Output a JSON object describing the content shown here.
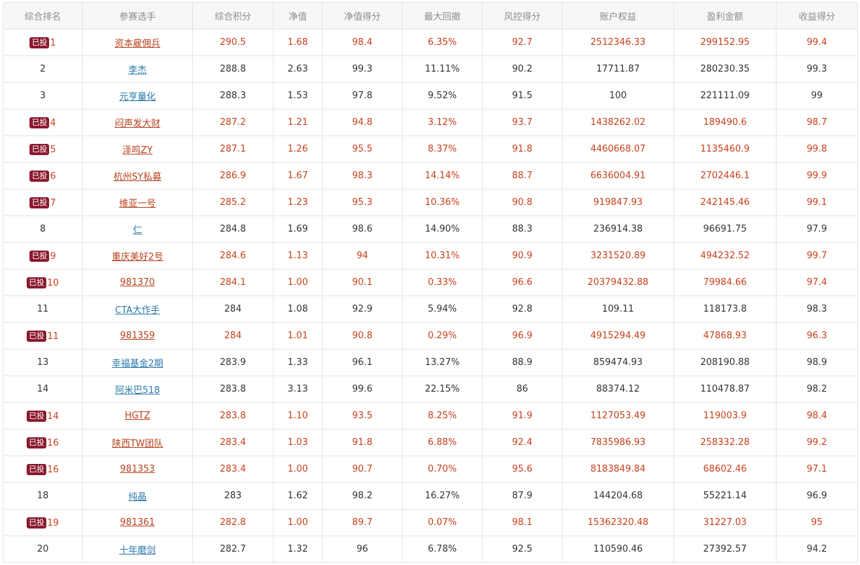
{
  "table": {
    "headers": [
      "综合排名",
      "参赛选手",
      "综合积分",
      "净值",
      "净值得分",
      "最大回撤",
      "风控得分",
      "账户权益",
      "盈利金额",
      "收益得分"
    ],
    "badge_label": "已投",
    "colors": {
      "invested_text": "#c8401e",
      "invested_link": "#b7411d",
      "regular_text": "#333333",
      "regular_link": "#2b7aaa",
      "badge_bg": "#8a1a2e",
      "header_text": "#8c8c8c"
    },
    "rows": [
      {
        "invested": true,
        "badge": "已投",
        "rank": "1",
        "name": "资本雇佣兵",
        "score": "290.5",
        "nav": "1.68",
        "nav_score": "98.4",
        "max_drawdown": "6.35%",
        "risk_score": "92.7",
        "equity": "2512346.33",
        "profit": "299152.95",
        "return_score": "99.4"
      },
      {
        "invested": false,
        "badge": "",
        "rank": "2",
        "name": "李杰",
        "score": "288.8",
        "nav": "2.63",
        "nav_score": "99.3",
        "max_drawdown": "11.11%",
        "risk_score": "90.2",
        "equity": "17711.87",
        "profit": "280230.35",
        "return_score": "99.3"
      },
      {
        "invested": false,
        "badge": "",
        "rank": "3",
        "name": "元亨量化",
        "score": "288.3",
        "nav": "1.53",
        "nav_score": "97.8",
        "max_drawdown": "9.52%",
        "risk_score": "91.5",
        "equity": "100",
        "profit": "221111.09",
        "return_score": "99"
      },
      {
        "invested": true,
        "badge": "已投",
        "rank": "4",
        "name": "闷声发大财",
        "score": "287.2",
        "nav": "1.21",
        "nav_score": "94.8",
        "max_drawdown": "3.12%",
        "risk_score": "93.7",
        "equity": "1438262.02",
        "profit": "189490.6",
        "return_score": "98.7"
      },
      {
        "invested": true,
        "badge": "已投",
        "rank": "5",
        "name": "泽鸣ZY",
        "score": "287.1",
        "nav": "1.26",
        "nav_score": "95.5",
        "max_drawdown": "8.37%",
        "risk_score": "91.8",
        "equity": "4460668.07",
        "profit": "1135460.9",
        "return_score": "99.8"
      },
      {
        "invested": true,
        "badge": "已投",
        "rank": "6",
        "name": "杭州SY私募",
        "score": "286.9",
        "nav": "1.67",
        "nav_score": "98.3",
        "max_drawdown": "14.14%",
        "risk_score": "88.7",
        "equity": "6636004.91",
        "profit": "2702446.1",
        "return_score": "99.9"
      },
      {
        "invested": true,
        "badge": "已投",
        "rank": "7",
        "name": "维亚一号",
        "score": "285.2",
        "nav": "1.23",
        "nav_score": "95.3",
        "max_drawdown": "10.36%",
        "risk_score": "90.8",
        "equity": "919847.93",
        "profit": "242145.46",
        "return_score": "99.1"
      },
      {
        "invested": false,
        "badge": "",
        "rank": "8",
        "name": "仁",
        "score": "284.8",
        "nav": "1.69",
        "nav_score": "98.6",
        "max_drawdown": "14.90%",
        "risk_score": "88.3",
        "equity": "236914.38",
        "profit": "96691.75",
        "return_score": "97.9"
      },
      {
        "invested": true,
        "badge": "已投",
        "rank": "9",
        "name": "重庆美好2号",
        "score": "284.6",
        "nav": "1.13",
        "nav_score": "94",
        "max_drawdown": "10.31%",
        "risk_score": "90.9",
        "equity": "3231520.89",
        "profit": "494232.52",
        "return_score": "99.7"
      },
      {
        "invested": true,
        "badge": "已投",
        "rank": "10",
        "name": "981370",
        "score": "284.1",
        "nav": "1.00",
        "nav_score": "90.1",
        "max_drawdown": "0.33%",
        "risk_score": "96.6",
        "equity": "20379432.88",
        "profit": "79984.66",
        "return_score": "97.4"
      },
      {
        "invested": false,
        "badge": "",
        "rank": "11",
        "name": "CTA大作手",
        "score": "284",
        "nav": "1.08",
        "nav_score": "92.9",
        "max_drawdown": "5.94%",
        "risk_score": "92.8",
        "equity": "109.11",
        "profit": "118173.8",
        "return_score": "98.3"
      },
      {
        "invested": true,
        "badge": "已投",
        "rank": "11",
        "name": "981359",
        "score": "284",
        "nav": "1.01",
        "nav_score": "90.8",
        "max_drawdown": "0.29%",
        "risk_score": "96.9",
        "equity": "4915294.49",
        "profit": "47868.93",
        "return_score": "96.3"
      },
      {
        "invested": false,
        "badge": "",
        "rank": "13",
        "name": "幸福基金2期",
        "score": "283.9",
        "nav": "1.33",
        "nav_score": "96.1",
        "max_drawdown": "13.27%",
        "risk_score": "88.9",
        "equity": "859474.93",
        "profit": "208190.88",
        "return_score": "98.9"
      },
      {
        "invested": false,
        "badge": "",
        "rank": "14",
        "name": "阿米巴518",
        "score": "283.8",
        "nav": "3.13",
        "nav_score": "99.6",
        "max_drawdown": "22.15%",
        "risk_score": "86",
        "equity": "88374.12",
        "profit": "110478.87",
        "return_score": "98.2"
      },
      {
        "invested": true,
        "badge": "已投",
        "rank": "14",
        "name": "HGTZ",
        "score": "283.8",
        "nav": "1.10",
        "nav_score": "93.5",
        "max_drawdown": "8.25%",
        "risk_score": "91.9",
        "equity": "1127053.49",
        "profit": "119003.9",
        "return_score": "98.4"
      },
      {
        "invested": true,
        "badge": "已投",
        "rank": "16",
        "name": "陕西TW团队",
        "score": "283.4",
        "nav": "1.03",
        "nav_score": "91.8",
        "max_drawdown": "6.88%",
        "risk_score": "92.4",
        "equity": "7835986.93",
        "profit": "258332.28",
        "return_score": "99.2"
      },
      {
        "invested": true,
        "badge": "已投",
        "rank": "16",
        "name": "981353",
        "score": "283.4",
        "nav": "1.00",
        "nav_score": "90.7",
        "max_drawdown": "0.70%",
        "risk_score": "95.6",
        "equity": "8183849.84",
        "profit": "68602.46",
        "return_score": "97.1"
      },
      {
        "invested": false,
        "badge": "",
        "rank": "18",
        "name": "纯晶",
        "score": "283",
        "nav": "1.62",
        "nav_score": "98.2",
        "max_drawdown": "16.27%",
        "risk_score": "87.9",
        "equity": "144204.68",
        "profit": "55221.14",
        "return_score": "96.9"
      },
      {
        "invested": true,
        "badge": "已投",
        "rank": "19",
        "name": "981361",
        "score": "282.8",
        "nav": "1.00",
        "nav_score": "89.7",
        "max_drawdown": "0.07%",
        "risk_score": "98.1",
        "equity": "15362320.48",
        "profit": "31227.03",
        "return_score": "95"
      },
      {
        "invested": false,
        "badge": "",
        "rank": "20",
        "name": "十年磨剑",
        "score": "282.7",
        "nav": "1.32",
        "nav_score": "96",
        "max_drawdown": "6.78%",
        "risk_score": "92.5",
        "equity": "110590.46",
        "profit": "27392.57",
        "return_score": "94.2"
      }
    ]
  }
}
